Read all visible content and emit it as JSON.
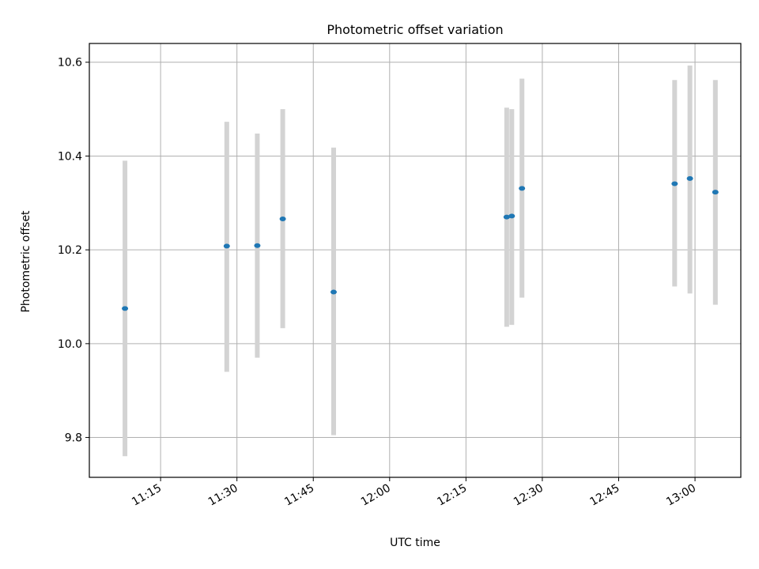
{
  "chart_data": {
    "type": "scatter",
    "title": "Photometric offset variation",
    "xlabel": "UTC time",
    "ylabel": "Photometric offset",
    "x_tick_labels": [
      "11:15",
      "11:30",
      "11:45",
      "12:00",
      "12:15",
      "12:30",
      "12:45",
      "13:00"
    ],
    "x_ticks": [
      "11:15",
      "11:30",
      "11:45",
      "12:00",
      "12:15",
      "12:30",
      "12:45",
      "13:00"
    ],
    "xlim": [
      "11:01",
      "13:09"
    ],
    "y_tick_labels": [
      "9.8",
      "10.0",
      "10.2",
      "10.4",
      "10.6"
    ],
    "y_ticks": [
      9.8,
      10.0,
      10.2,
      10.4,
      10.6
    ],
    "ylim": [
      9.715,
      10.64
    ],
    "grid": true,
    "point_color": "#1f77b4",
    "errorbar_color": "#d3d3d3",
    "points": [
      {
        "t": "11:08",
        "y": 10.075,
        "low": 9.76,
        "high": 10.39
      },
      {
        "t": "11:28",
        "y": 10.208,
        "low": 9.94,
        "high": 10.473
      },
      {
        "t": "11:34",
        "y": 10.209,
        "low": 9.97,
        "high": 10.448
      },
      {
        "t": "11:39",
        "y": 10.266,
        "low": 10.033,
        "high": 10.5
      },
      {
        "t": "11:49",
        "y": 10.11,
        "low": 9.805,
        "high": 10.418
      },
      {
        "t": "12:23",
        "y": 10.27,
        "low": 10.036,
        "high": 10.503
      },
      {
        "t": "12:24",
        "y": 10.272,
        "low": 10.04,
        "high": 10.5
      },
      {
        "t": "12:26",
        "y": 10.331,
        "low": 10.098,
        "high": 10.565
      },
      {
        "t": "12:56",
        "y": 10.341,
        "low": 10.122,
        "high": 10.562
      },
      {
        "t": "12:59",
        "y": 10.352,
        "low": 10.107,
        "high": 10.593
      },
      {
        "t": "13:04",
        "y": 10.323,
        "low": 10.083,
        "high": 10.562
      }
    ]
  }
}
